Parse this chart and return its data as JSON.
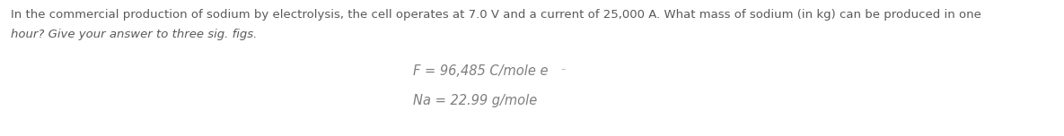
{
  "line1": "In the commercial production of sodium by electrolysis, the cell operates at 7.0 V and a current of 25,000 A. What mass of sodium (in kg) can be produced in one",
  "line2": "hour? Give your answer to three sig. figs.",
  "formula1_main": "F = 96,485 C/mole e",
  "formula1_sup": "⁻",
  "formula2": "Na = 22.99 g/mole",
  "background_color": "#ffffff",
  "text_color": "#595959",
  "formula_color": "#7f7f7f",
  "font_size_body": 9.5,
  "font_size_formula": 10.5,
  "font_size_sup": 7.5,
  "fig_width": 11.85,
  "fig_height": 1.52,
  "dpi": 100
}
